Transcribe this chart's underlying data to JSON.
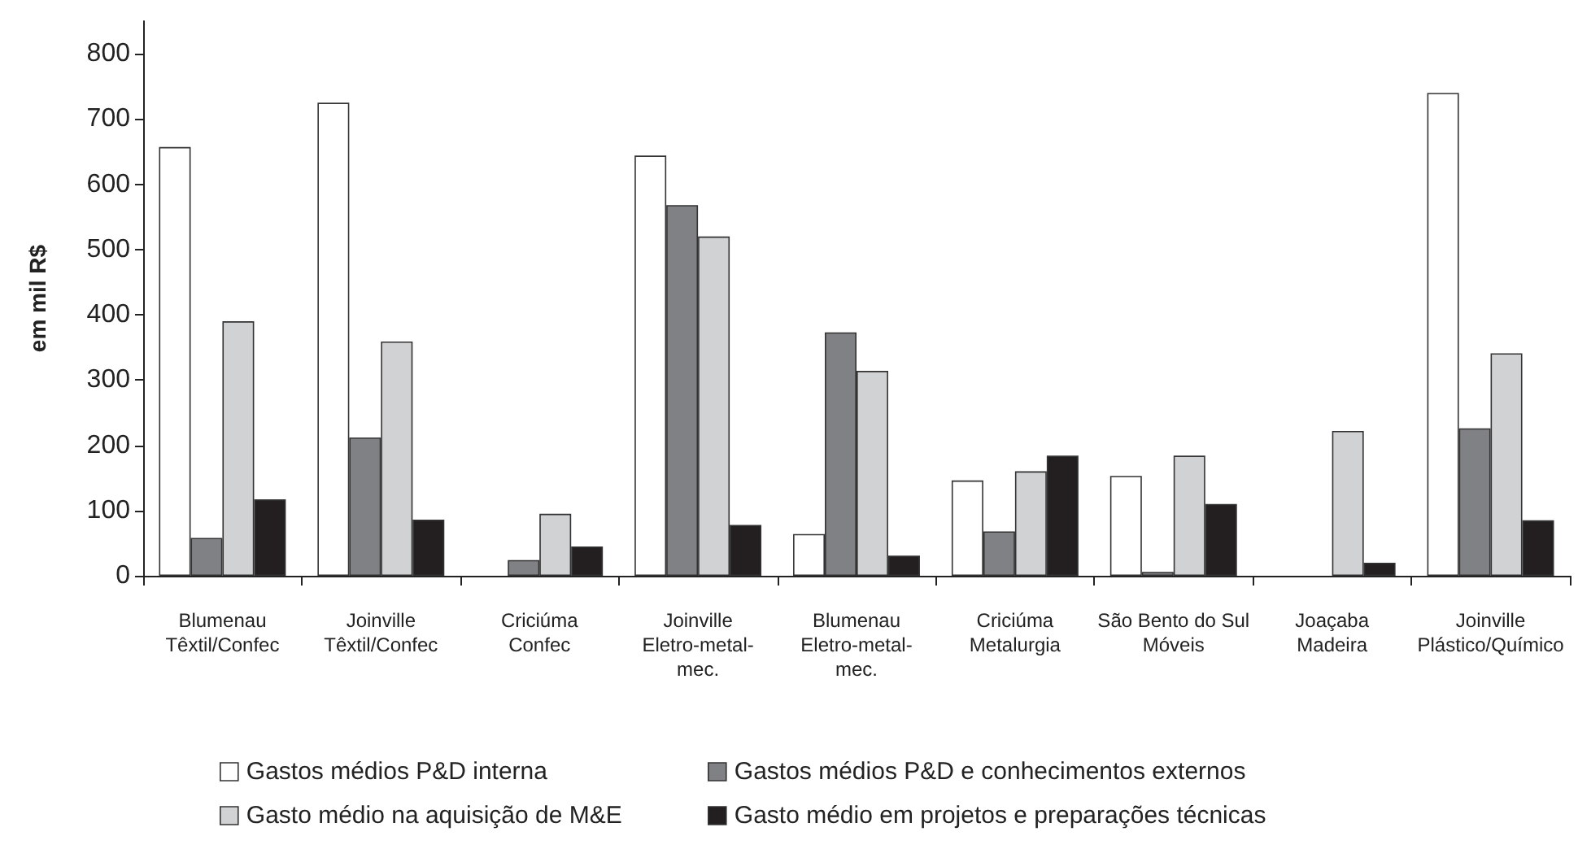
{
  "chart_data": {
    "type": "bar",
    "ylabel": "em mil R$",
    "categories": [
      "Blumenau\nTêxtil/Confec",
      "Joinville\nTêxtil/Confec",
      "Criciúma\nConfec",
      "Joinville\nEletro-metal-\nmec.",
      "Blumenau\nEletro-metal-\nmec.",
      "Criciúma\nMetalurgia",
      "São Bento do Sul\nMóveis",
      "Joaçaba\nMadeira",
      "Joinville\nPlástico/Químico"
    ],
    "series": [
      {
        "name": "Gastos médios P&D interna",
        "color": "#ffffff",
        "values": [
          657,
          725,
          null,
          644,
          64,
          146,
          153,
          null,
          740
        ]
      },
      {
        "name": "Gastos médios P&D e conhecimentos externos",
        "color": "#808184",
        "values": [
          58,
          212,
          24,
          568,
          373,
          68,
          6,
          null,
          226
        ]
      },
      {
        "name": "Gasto médio na aquisição de M&E",
        "color": "#d1d2d4",
        "values": [
          390,
          359,
          95,
          520,
          314,
          160,
          184,
          222,
          341
        ]
      },
      {
        "name": "Gasto médio em projetos e preparações técnicas",
        "color": "#231f20",
        "values": [
          117,
          86,
          45,
          78,
          31,
          184,
          110,
          20,
          85
        ]
      }
    ],
    "ylim": [
      0,
      850
    ],
    "yticks": [
      0,
      100,
      200,
      300,
      400,
      500,
      600,
      700,
      800
    ],
    "grid": false,
    "legend": "bottom"
  }
}
